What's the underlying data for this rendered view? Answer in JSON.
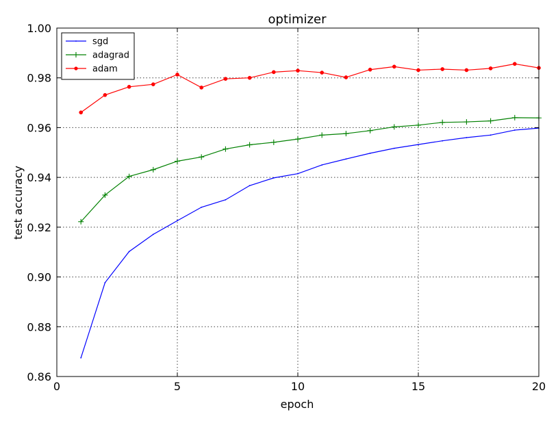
{
  "chart_data": {
    "type": "line",
    "title": "optimizer",
    "xlabel": "epoch",
    "ylabel": "test accuracy",
    "xlim": [
      0,
      20
    ],
    "ylim": [
      0.86,
      1.0
    ],
    "x_ticks": [
      0,
      5,
      10,
      15,
      20
    ],
    "y_ticks": [
      0.86,
      0.88,
      0.9,
      0.92,
      0.94,
      0.96,
      0.98,
      1.0
    ],
    "x_tick_labels": [
      "0",
      "5",
      "10",
      "15",
      "20"
    ],
    "y_tick_labels": [
      "0.86",
      "0.88",
      "0.90",
      "0.92",
      "0.94",
      "0.96",
      "0.98",
      "1.00"
    ],
    "grid": true,
    "legend_position": "top-left",
    "x": [
      1,
      2,
      3,
      4,
      5,
      6,
      7,
      8,
      9,
      10,
      11,
      12,
      13,
      14,
      15,
      16,
      17,
      18,
      19,
      20
    ],
    "series": [
      {
        "name": "sgd",
        "color": "#0000ff",
        "marker": "point",
        "values": [
          0.8675,
          0.8977,
          0.9102,
          0.9171,
          0.9226,
          0.928,
          0.931,
          0.9367,
          0.9398,
          0.9415,
          0.945,
          0.9474,
          0.9497,
          0.9517,
          0.9532,
          0.9547,
          0.956,
          0.957,
          0.959,
          0.9598
        ]
      },
      {
        "name": "adagrad",
        "color": "#008000",
        "marker": "plus",
        "values": [
          0.9222,
          0.9329,
          0.9404,
          0.9431,
          0.9465,
          0.9482,
          0.9514,
          0.9531,
          0.9541,
          0.9554,
          0.957,
          0.9576,
          0.9588,
          0.9603,
          0.961,
          0.9621,
          0.9623,
          0.9627,
          0.964,
          0.9639
        ]
      },
      {
        "name": "adam",
        "color": "#ff0000",
        "marker": "circle",
        "values": [
          0.9661,
          0.9731,
          0.9764,
          0.9774,
          0.9813,
          0.9761,
          0.9796,
          0.98,
          0.9823,
          0.9829,
          0.9821,
          0.9802,
          0.9833,
          0.9845,
          0.9831,
          0.9835,
          0.9831,
          0.9838,
          0.9856,
          0.984
        ]
      }
    ]
  }
}
